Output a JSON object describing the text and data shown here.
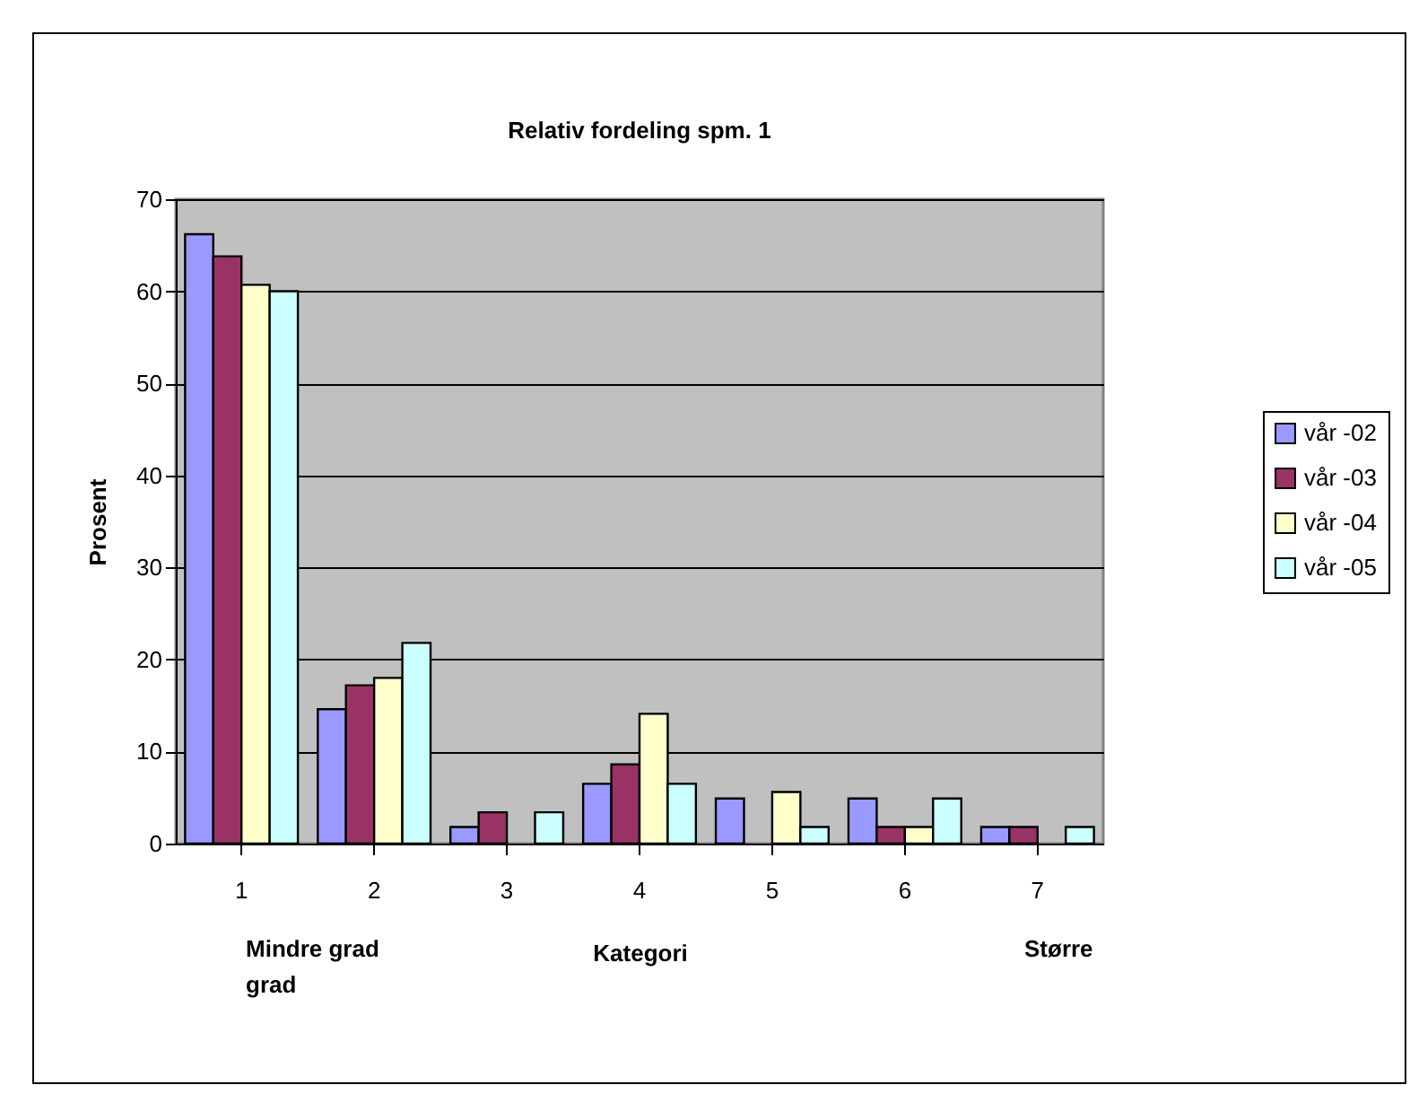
{
  "chart_data": {
    "type": "bar",
    "title": "Relativ fordeling spm. 1",
    "xlabel": "Kategori",
    "ylabel": "Prosent",
    "categories": [
      "1",
      "2",
      "3",
      "4",
      "5",
      "6",
      "7"
    ],
    "series": [
      {
        "name": "vår -02",
        "color": "#9999ff",
        "values": [
          66.2,
          14.6,
          1.8,
          6.5,
          4.9,
          4.9,
          1.8
        ]
      },
      {
        "name": "vår -03",
        "color": "#993366",
        "values": [
          63.8,
          17.2,
          3.4,
          8.6,
          0,
          1.8,
          1.8
        ]
      },
      {
        "name": "vår -04",
        "color": "#ffffcc",
        "values": [
          60.7,
          18.0,
          0,
          14.1,
          5.6,
          1.8,
          0
        ]
      },
      {
        "name": "vår -05",
        "color": "#ccffff",
        "values": [
          60.0,
          21.8,
          3.4,
          6.5,
          1.8,
          4.9,
          1.8
        ]
      }
    ],
    "annotations": [
      "Mindre grad grad",
      "Større"
    ],
    "ylim": [
      0,
      70
    ],
    "yticks": [
      0,
      10,
      20,
      30,
      40,
      50,
      60,
      70
    ],
    "grid": "y",
    "legend": "right"
  }
}
